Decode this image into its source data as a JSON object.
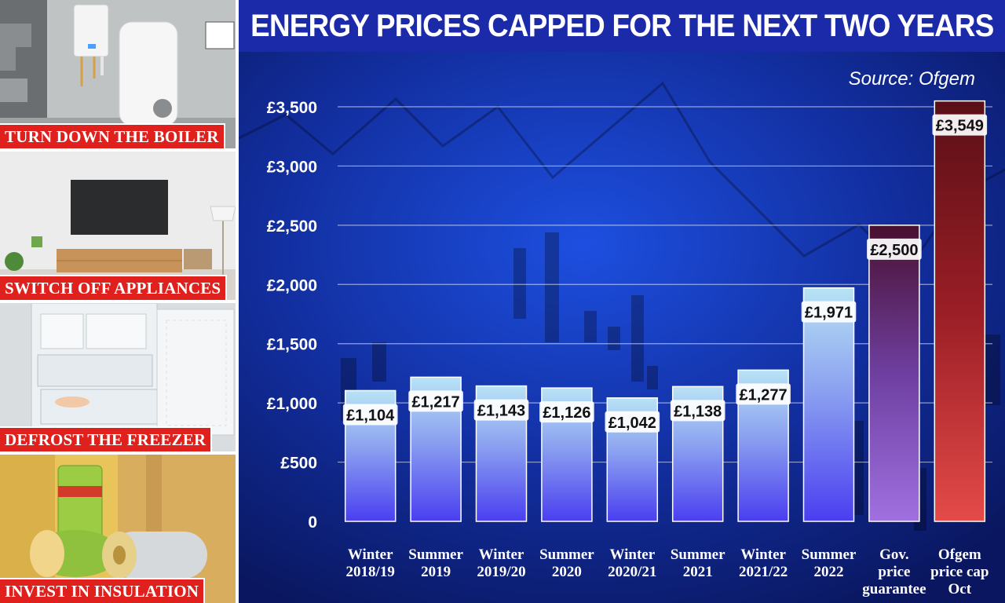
{
  "panels": [
    {
      "caption": "TURN DOWN THE BOILER"
    },
    {
      "caption": "SWITCH OFF APPLIANCES"
    },
    {
      "caption": "DEFROST THE FREEZER"
    },
    {
      "caption": "INVEST IN INSULATION"
    }
  ],
  "colors": {
    "title_band": "#1b2aa8",
    "caption_bg": "#e0201c",
    "bar_blue_top": "#b8e3f5",
    "bar_blue_bottom": "#4a3ef0",
    "bar_purple_top": "#4a1030",
    "bar_purple_bottom": "#a070e0",
    "bar_red_top": "#5a0f16",
    "bar_red_bottom": "#e44a48"
  },
  "chart_data": {
    "type": "bar",
    "title": "ENERGY PRICES CAPPED FOR THE NEXT TWO YEARS",
    "source": "Source: Ofgem",
    "ylim": [
      0,
      3600
    ],
    "yticks": [
      0,
      500,
      1000,
      1500,
      2000,
      2500,
      3000,
      3500
    ],
    "ytick_labels": [
      "0",
      "£500",
      "£1,000",
      "£1,500",
      "£2,000",
      "£2,500",
      "£3,000",
      "£3,500"
    ],
    "grid": true,
    "categories": [
      [
        "Winter",
        "2018/19"
      ],
      [
        "Summer",
        "2019"
      ],
      [
        "Winter",
        "2019/20"
      ],
      [
        "Summer",
        "2020"
      ],
      [
        "Winter",
        "2020/21"
      ],
      [
        "Summer",
        "2021"
      ],
      [
        "Winter",
        "2021/22"
      ],
      [
        "Summer",
        "2022"
      ],
      [
        "Gov.",
        "price",
        "guarantee"
      ],
      [
        "Ofgem",
        "price cap",
        "Oct"
      ]
    ],
    "values": [
      1104,
      1217,
      1143,
      1126,
      1042,
      1138,
      1277,
      1971,
      2500,
      3549
    ],
    "value_labels": [
      "£1,104",
      "£1,217",
      "£1,143",
      "£1,126",
      "£1,042",
      "£1,138",
      "£1,277",
      "£1,971",
      "£2,500",
      "£3,549"
    ],
    "bar_styles": [
      "blue",
      "blue",
      "blue",
      "blue",
      "blue",
      "blue",
      "blue",
      "blue",
      "purple",
      "red"
    ]
  }
}
